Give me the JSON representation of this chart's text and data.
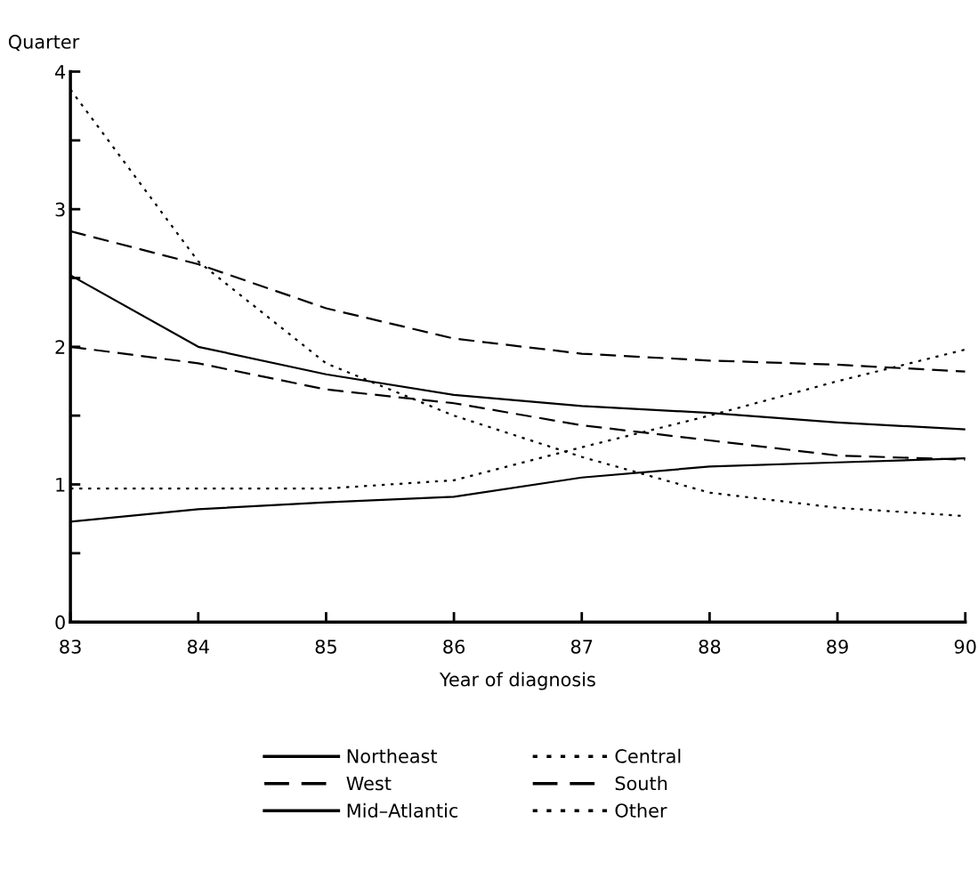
{
  "chart_data": {
    "type": "line",
    "xlabel": "Year of diagnosis",
    "ylabel": "Quarter",
    "x": [
      83,
      84,
      85,
      86,
      87,
      88,
      89,
      90
    ],
    "xlim": [
      83,
      90
    ],
    "xticks": [
      83,
      84,
      85,
      86,
      87,
      88,
      89,
      90
    ],
    "ylim": [
      0,
      4
    ],
    "yticks": [
      0,
      {
        "value": 0.5,
        "label": null
      },
      1,
      {
        "value": 1.5,
        "label": null
      },
      2,
      {
        "value": 2.5,
        "label": null
      },
      3,
      {
        "value": 3.5,
        "label": null
      },
      4
    ],
    "grid": false,
    "legend": "bottom",
    "marker": "none",
    "series": [
      {
        "name": "Northeast",
        "color": "#000000",
        "line_style": "solid",
        "values": [
          0.73,
          0.82,
          0.87,
          0.91,
          1.05,
          1.13,
          1.16,
          1.19
        ]
      },
      {
        "name": "Central",
        "color": "#000000",
        "line_style": "dotted",
        "values": [
          3.87,
          2.62,
          1.88,
          1.5,
          1.2,
          0.94,
          0.83,
          0.77
        ]
      },
      {
        "name": "West",
        "color": "#000000",
        "line_style": "dashed",
        "values": [
          2.84,
          2.6,
          2.28,
          2.06,
          1.95,
          1.9,
          1.87,
          1.82
        ]
      },
      {
        "name": "South",
        "color": "#000000",
        "line_style": "dashed",
        "values": [
          2.0,
          1.88,
          1.69,
          1.59,
          1.43,
          1.32,
          1.21,
          1.18
        ]
      },
      {
        "name": "Mid–Atlantic",
        "color": "#000000",
        "line_style": "solid",
        "values": [
          2.52,
          2.0,
          1.8,
          1.65,
          1.57,
          1.52,
          1.45,
          1.4
        ]
      },
      {
        "name": "Other",
        "color": "#000000",
        "line_style": "dotted",
        "values": [
          0.97,
          0.97,
          0.97,
          1.03,
          1.27,
          1.5,
          1.75,
          1.98
        ]
      }
    ]
  }
}
